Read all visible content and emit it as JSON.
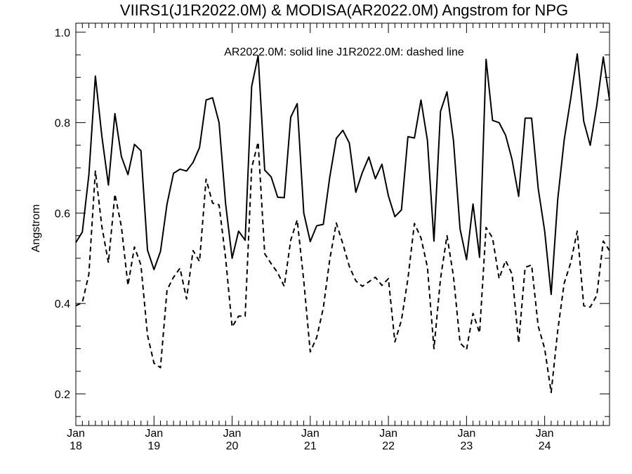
{
  "chart_data": {
    "type": "line",
    "title": "VIIRS1(J1R2022.0M) & MODISA(AR2022.0M)  Angstrom for NPG",
    "annotation": "AR2022.0M: solid line   J1R2022.0M: dashed line",
    "ylabel": "Angstrom",
    "xlabel": "",
    "xlim": [
      2018.0,
      2024.83
    ],
    "ylim": [
      0.13,
      1.02
    ],
    "y_ticks": [
      "0.2",
      "0.4",
      "0.6",
      "0.8",
      "1.0"
    ],
    "x_ticks": [
      {
        "month": "Jan",
        "year": "18"
      },
      {
        "month": "Jan",
        "year": "19"
      },
      {
        "month": "Jan",
        "year": "20"
      },
      {
        "month": "Jan",
        "year": "21"
      },
      {
        "month": "Jan",
        "year": "22"
      },
      {
        "month": "Jan",
        "year": "23"
      },
      {
        "month": "Jan",
        "year": "24"
      }
    ],
    "grid": false,
    "series": [
      {
        "name": "AR2022.0M",
        "style": "solid",
        "color": "#000000",
        "x": [
          2018.0,
          2018.083,
          2018.167,
          2018.25,
          2018.333,
          2018.417,
          2018.5,
          2018.583,
          2018.667,
          2018.75,
          2018.833,
          2018.917,
          2019.0,
          2019.083,
          2019.167,
          2019.25,
          2019.333,
          2019.417,
          2019.5,
          2019.583,
          2019.667,
          2019.75,
          2019.833,
          2019.917,
          2020.0,
          2020.083,
          2020.167,
          2020.25,
          2020.333,
          2020.417,
          2020.5,
          2020.583,
          2020.667,
          2020.75,
          2020.833,
          2020.917,
          2021.0,
          2021.083,
          2021.167,
          2021.25,
          2021.333,
          2021.417,
          2021.5,
          2021.583,
          2021.667,
          2021.75,
          2021.833,
          2021.917,
          2022.0,
          2022.083,
          2022.167,
          2022.25,
          2022.333,
          2022.417,
          2022.5,
          2022.583,
          2022.667,
          2022.75,
          2022.833,
          2022.917,
          2023.0,
          2023.083,
          2023.167,
          2023.25,
          2023.333,
          2023.417,
          2023.5,
          2023.583,
          2023.667,
          2023.75,
          2023.833,
          2023.917,
          2024.0,
          2024.083,
          2024.167,
          2024.25,
          2024.333,
          2024.417,
          2024.5,
          2024.583,
          2024.667,
          2024.75,
          2024.83
        ],
        "y": [
          0.535,
          0.558,
          0.685,
          0.903,
          0.77,
          0.662,
          0.82,
          0.725,
          0.685,
          0.752,
          0.738,
          0.518,
          0.475,
          0.515,
          0.62,
          0.688,
          0.697,
          0.693,
          0.712,
          0.745,
          0.85,
          0.855,
          0.8,
          0.62,
          0.5,
          0.56,
          0.54,
          0.88,
          0.948,
          0.695,
          0.68,
          0.635,
          0.634,
          0.812,
          0.842,
          0.6,
          0.537,
          0.572,
          0.575,
          0.68,
          0.765,
          0.783,
          0.755,
          0.646,
          0.69,
          0.724,
          0.676,
          0.708,
          0.638,
          0.592,
          0.607,
          0.769,
          0.766,
          0.85,
          0.76,
          0.538,
          0.825,
          0.868,
          0.76,
          0.565,
          0.497,
          0.62,
          0.502,
          0.94,
          0.805,
          0.8,
          0.772,
          0.718,
          0.637,
          0.81,
          0.81,
          0.655,
          0.56,
          0.42,
          0.63,
          0.762,
          0.853,
          0.952,
          0.803,
          0.75,
          0.838,
          0.945,
          0.85
        ]
      },
      {
        "name": "J1R2022.0M",
        "style": "dashed",
        "color": "#000000",
        "x": [
          2018.0,
          2018.083,
          2018.167,
          2018.25,
          2018.333,
          2018.417,
          2018.5,
          2018.583,
          2018.667,
          2018.75,
          2018.833,
          2018.917,
          2019.0,
          2019.083,
          2019.167,
          2019.25,
          2019.333,
          2019.417,
          2019.5,
          2019.583,
          2019.667,
          2019.75,
          2019.833,
          2019.917,
          2020.0,
          2020.083,
          2020.167,
          2020.25,
          2020.333,
          2020.417,
          2020.5,
          2020.583,
          2020.667,
          2020.75,
          2020.833,
          2020.917,
          2021.0,
          2021.083,
          2021.167,
          2021.25,
          2021.333,
          2021.417,
          2021.5,
          2021.583,
          2021.667,
          2021.75,
          2021.833,
          2021.917,
          2022.0,
          2022.083,
          2022.167,
          2022.25,
          2022.333,
          2022.417,
          2022.5,
          2022.583,
          2022.667,
          2022.75,
          2022.833,
          2022.917,
          2023.0,
          2023.083,
          2023.167,
          2023.25,
          2023.333,
          2023.417,
          2023.5,
          2023.583,
          2023.667,
          2023.75,
          2023.833,
          2023.917,
          2024.0,
          2024.083,
          2024.167,
          2024.25,
          2024.333,
          2024.417,
          2024.5,
          2024.583,
          2024.667,
          2024.75,
          2024.83
        ],
        "y": [
          0.395,
          0.402,
          0.465,
          0.693,
          0.57,
          0.49,
          0.642,
          0.57,
          0.44,
          0.525,
          0.485,
          0.33,
          0.268,
          0.258,
          0.43,
          0.458,
          0.478,
          0.41,
          0.517,
          0.493,
          0.675,
          0.622,
          0.618,
          0.5,
          0.348,
          0.372,
          0.372,
          0.7,
          0.757,
          0.51,
          0.488,
          0.468,
          0.438,
          0.54,
          0.585,
          0.45,
          0.293,
          0.325,
          0.39,
          0.498,
          0.578,
          0.532,
          0.482,
          0.45,
          0.438,
          0.448,
          0.458,
          0.44,
          0.455,
          0.315,
          0.363,
          0.455,
          0.577,
          0.545,
          0.48,
          0.3,
          0.455,
          0.55,
          0.46,
          0.313,
          0.298,
          0.378,
          0.335,
          0.568,
          0.545,
          0.455,
          0.495,
          0.465,
          0.313,
          0.48,
          0.485,
          0.35,
          0.3,
          0.203,
          0.34,
          0.445,
          0.49,
          0.56,
          0.395,
          0.392,
          0.418,
          0.538,
          0.517
        ]
      }
    ]
  }
}
